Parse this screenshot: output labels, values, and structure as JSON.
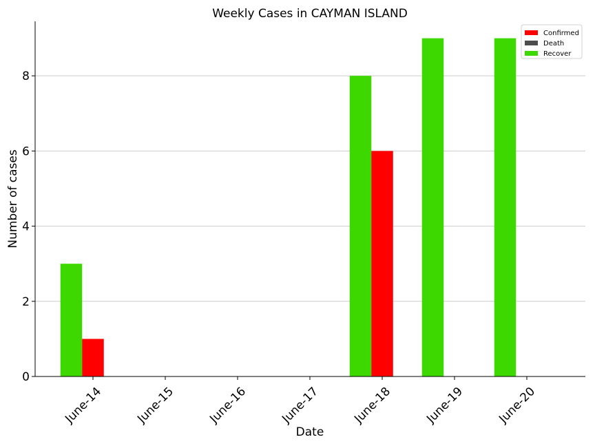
{
  "chart_data": {
    "type": "bar",
    "title": "Weekly Cases in CAYMAN ISLAND",
    "xlabel": "Date",
    "ylabel": "Number of cases",
    "categories": [
      "June-14",
      "June-15",
      "June-16",
      "June-17",
      "June-18",
      "June-19",
      "June-20"
    ],
    "ylim": [
      0,
      9.45
    ],
    "yticks": [
      0,
      2,
      4,
      6,
      8
    ],
    "grid": "horizontal",
    "legend_position": "top-right",
    "series": [
      {
        "name": "Confirmed",
        "color": "#ff0000",
        "values": [
          1,
          0,
          0,
          0,
          6,
          0,
          0
        ]
      },
      {
        "name": "Death",
        "color": "#4d4d4d",
        "values": [
          0,
          0,
          0,
          0,
          0,
          0,
          0
        ]
      },
      {
        "name": "Recover",
        "color": "#3dd800",
        "values": [
          3,
          0,
          0,
          0,
          8,
          9,
          9
        ]
      }
    ]
  }
}
